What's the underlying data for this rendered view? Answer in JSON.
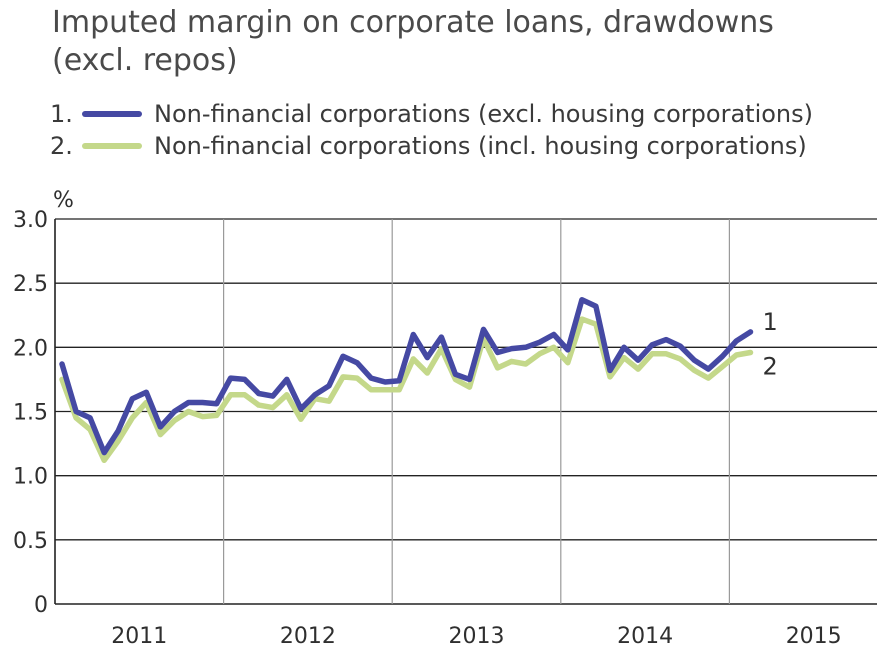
{
  "title_lines": [
    "Imputed margin on corporate loans, drawdowns",
    "(excl. repos)"
  ],
  "legend": [
    {
      "num": "1.",
      "label": "Non-financial corporations (excl. housing corporations)",
      "color": "#4549a3"
    },
    {
      "num": "2.",
      "label": "Non-financial corporations (incl. housing corporations)",
      "color": "#c4d88a"
    }
  ],
  "chart_data": {
    "type": "line",
    "ylabel": "%",
    "ylim": [
      0,
      3.0
    ],
    "yticks": [
      "0",
      "0.5",
      "1.0",
      "1.5",
      "2.0",
      "2.5",
      "3.0"
    ],
    "year_labels": [
      "2011",
      "2012",
      "2013",
      "2014",
      "2015"
    ],
    "x_start": "2011-01",
    "x_end": "2015-12",
    "grid": true,
    "series": [
      {
        "name": "1",
        "color": "#4549a3",
        "end_label": "1",
        "values": [
          1.87,
          1.5,
          1.45,
          1.18,
          1.35,
          1.6,
          1.65,
          1.38,
          1.5,
          1.57,
          1.57,
          1.56,
          1.76,
          1.75,
          1.64,
          1.62,
          1.75,
          1.52,
          1.63,
          1.7,
          1.93,
          1.88,
          1.76,
          1.73,
          1.74,
          2.1,
          1.92,
          2.08,
          1.79,
          1.75,
          2.14,
          1.96,
          1.99,
          2.0,
          2.04,
          2.1,
          1.98,
          2.37,
          2.32,
          1.82,
          2.0,
          1.9,
          2.02,
          2.06,
          2.01,
          1.9,
          1.83,
          1.93,
          2.05,
          2.12
        ]
      },
      {
        "name": "2",
        "color": "#c4d88a",
        "end_label": "2",
        "values": [
          1.75,
          1.45,
          1.36,
          1.12,
          1.27,
          1.45,
          1.57,
          1.32,
          1.43,
          1.5,
          1.46,
          1.47,
          1.63,
          1.63,
          1.55,
          1.53,
          1.63,
          1.44,
          1.6,
          1.58,
          1.77,
          1.76,
          1.67,
          1.67,
          1.67,
          1.91,
          1.8,
          1.99,
          1.75,
          1.69,
          2.07,
          1.84,
          1.89,
          1.87,
          1.95,
          2.0,
          1.88,
          2.22,
          2.18,
          1.77,
          1.92,
          1.83,
          1.95,
          1.95,
          1.91,
          1.82,
          1.76,
          1.85,
          1.94,
          1.96
        ]
      }
    ]
  }
}
